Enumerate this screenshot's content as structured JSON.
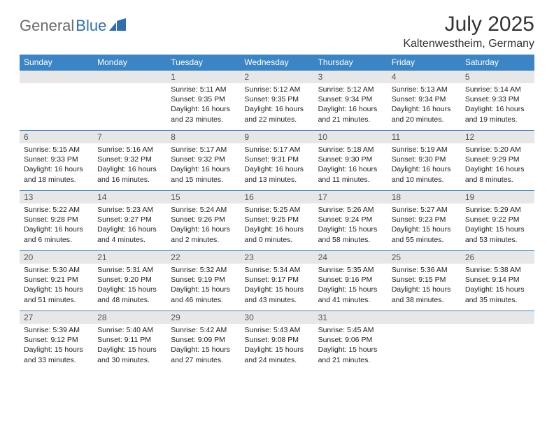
{
  "brand": {
    "part1": "General",
    "part2": "Blue"
  },
  "title": "July 2025",
  "location": "Kaltenwestheim, Germany",
  "colors": {
    "header_bg": "#3b85c6",
    "header_text": "#ffffff",
    "daynum_bg": "#e7e7e7",
    "logo_gray": "#6b6b6b",
    "logo_blue": "#2f6fb0",
    "row_border": "#3b85c6"
  },
  "day_headers": [
    "Sunday",
    "Monday",
    "Tuesday",
    "Wednesday",
    "Thursday",
    "Friday",
    "Saturday"
  ],
  "weeks": [
    [
      null,
      null,
      {
        "n": "1",
        "sr": "5:11 AM",
        "ss": "9:35 PM",
        "dl": "16 hours and 23 minutes."
      },
      {
        "n": "2",
        "sr": "5:12 AM",
        "ss": "9:35 PM",
        "dl": "16 hours and 22 minutes."
      },
      {
        "n": "3",
        "sr": "5:12 AM",
        "ss": "9:34 PM",
        "dl": "16 hours and 21 minutes."
      },
      {
        "n": "4",
        "sr": "5:13 AM",
        "ss": "9:34 PM",
        "dl": "16 hours and 20 minutes."
      },
      {
        "n": "5",
        "sr": "5:14 AM",
        "ss": "9:33 PM",
        "dl": "16 hours and 19 minutes."
      }
    ],
    [
      {
        "n": "6",
        "sr": "5:15 AM",
        "ss": "9:33 PM",
        "dl": "16 hours and 18 minutes."
      },
      {
        "n": "7",
        "sr": "5:16 AM",
        "ss": "9:32 PM",
        "dl": "16 hours and 16 minutes."
      },
      {
        "n": "8",
        "sr": "5:17 AM",
        "ss": "9:32 PM",
        "dl": "16 hours and 15 minutes."
      },
      {
        "n": "9",
        "sr": "5:17 AM",
        "ss": "9:31 PM",
        "dl": "16 hours and 13 minutes."
      },
      {
        "n": "10",
        "sr": "5:18 AM",
        "ss": "9:30 PM",
        "dl": "16 hours and 11 minutes."
      },
      {
        "n": "11",
        "sr": "5:19 AM",
        "ss": "9:30 PM",
        "dl": "16 hours and 10 minutes."
      },
      {
        "n": "12",
        "sr": "5:20 AM",
        "ss": "9:29 PM",
        "dl": "16 hours and 8 minutes."
      }
    ],
    [
      {
        "n": "13",
        "sr": "5:22 AM",
        "ss": "9:28 PM",
        "dl": "16 hours and 6 minutes."
      },
      {
        "n": "14",
        "sr": "5:23 AM",
        "ss": "9:27 PM",
        "dl": "16 hours and 4 minutes."
      },
      {
        "n": "15",
        "sr": "5:24 AM",
        "ss": "9:26 PM",
        "dl": "16 hours and 2 minutes."
      },
      {
        "n": "16",
        "sr": "5:25 AM",
        "ss": "9:25 PM",
        "dl": "16 hours and 0 minutes."
      },
      {
        "n": "17",
        "sr": "5:26 AM",
        "ss": "9:24 PM",
        "dl": "15 hours and 58 minutes."
      },
      {
        "n": "18",
        "sr": "5:27 AM",
        "ss": "9:23 PM",
        "dl": "15 hours and 55 minutes."
      },
      {
        "n": "19",
        "sr": "5:29 AM",
        "ss": "9:22 PM",
        "dl": "15 hours and 53 minutes."
      }
    ],
    [
      {
        "n": "20",
        "sr": "5:30 AM",
        "ss": "9:21 PM",
        "dl": "15 hours and 51 minutes."
      },
      {
        "n": "21",
        "sr": "5:31 AM",
        "ss": "9:20 PM",
        "dl": "15 hours and 48 minutes."
      },
      {
        "n": "22",
        "sr": "5:32 AM",
        "ss": "9:19 PM",
        "dl": "15 hours and 46 minutes."
      },
      {
        "n": "23",
        "sr": "5:34 AM",
        "ss": "9:17 PM",
        "dl": "15 hours and 43 minutes."
      },
      {
        "n": "24",
        "sr": "5:35 AM",
        "ss": "9:16 PM",
        "dl": "15 hours and 41 minutes."
      },
      {
        "n": "25",
        "sr": "5:36 AM",
        "ss": "9:15 PM",
        "dl": "15 hours and 38 minutes."
      },
      {
        "n": "26",
        "sr": "5:38 AM",
        "ss": "9:14 PM",
        "dl": "15 hours and 35 minutes."
      }
    ],
    [
      {
        "n": "27",
        "sr": "5:39 AM",
        "ss": "9:12 PM",
        "dl": "15 hours and 33 minutes."
      },
      {
        "n": "28",
        "sr": "5:40 AM",
        "ss": "9:11 PM",
        "dl": "15 hours and 30 minutes."
      },
      {
        "n": "29",
        "sr": "5:42 AM",
        "ss": "9:09 PM",
        "dl": "15 hours and 27 minutes."
      },
      {
        "n": "30",
        "sr": "5:43 AM",
        "ss": "9:08 PM",
        "dl": "15 hours and 24 minutes."
      },
      {
        "n": "31",
        "sr": "5:45 AM",
        "ss": "9:06 PM",
        "dl": "15 hours and 21 minutes."
      },
      null,
      null
    ]
  ],
  "labels": {
    "sunrise": "Sunrise:",
    "sunset": "Sunset:",
    "daylight": "Daylight:"
  }
}
